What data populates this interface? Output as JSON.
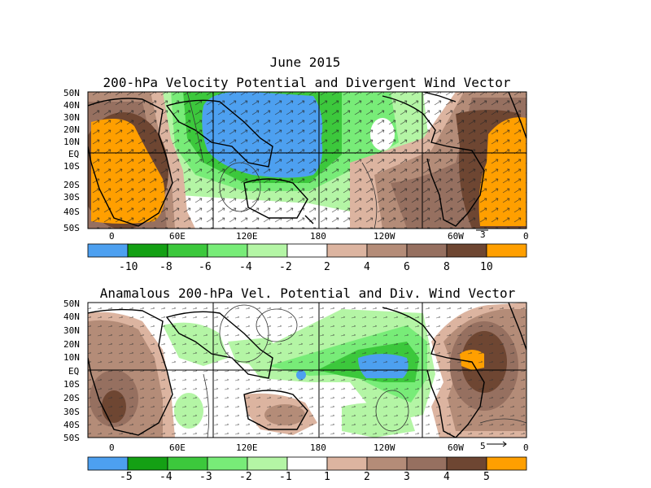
{
  "titles": {
    "date": "June 2015",
    "top": "200-hPa Velocity Potential and Divergent Wind Vector",
    "bottom": "Anamalous 200-hPa Vel. Potential and Div. Wind Vector"
  },
  "lat_labels": [
    "50N",
    "40N",
    "30N",
    "20N",
    "10N",
    "EQ",
    "10S",
    "20S",
    "30S",
    "40S",
    "50S"
  ],
  "lon_labels": [
    "0",
    "60E",
    "120E",
    "180",
    "120W",
    "60W",
    "0"
  ],
  "top_panel": {
    "ref_vector": "3",
    "colorbar_labels": [
      "-10",
      "-8",
      "-6",
      "-4",
      "-2",
      "2",
      "4",
      "6",
      "8",
      "10"
    ],
    "colorbar_colors": [
      "#4da0f0",
      "#14a014",
      "#3cc83c",
      "#78ec78",
      "#b4f5a5",
      "#ffffff",
      "#dcb4a0",
      "#b48c78",
      "#967060",
      "#6e4632",
      "#ff9f00"
    ]
  },
  "bottom_panel": {
    "ref_vector": "5",
    "colorbar_labels": [
      "-5",
      "-4",
      "-3",
      "-2",
      "-1",
      "1",
      "2",
      "3",
      "4",
      "5"
    ],
    "colorbar_colors": [
      "#4da0f0",
      "#14a014",
      "#3cc83c",
      "#78ec78",
      "#b4f5a5",
      "#ffffff",
      "#dcb4a0",
      "#b48c78",
      "#967060",
      "#6e4632",
      "#ff9f00"
    ]
  }
}
